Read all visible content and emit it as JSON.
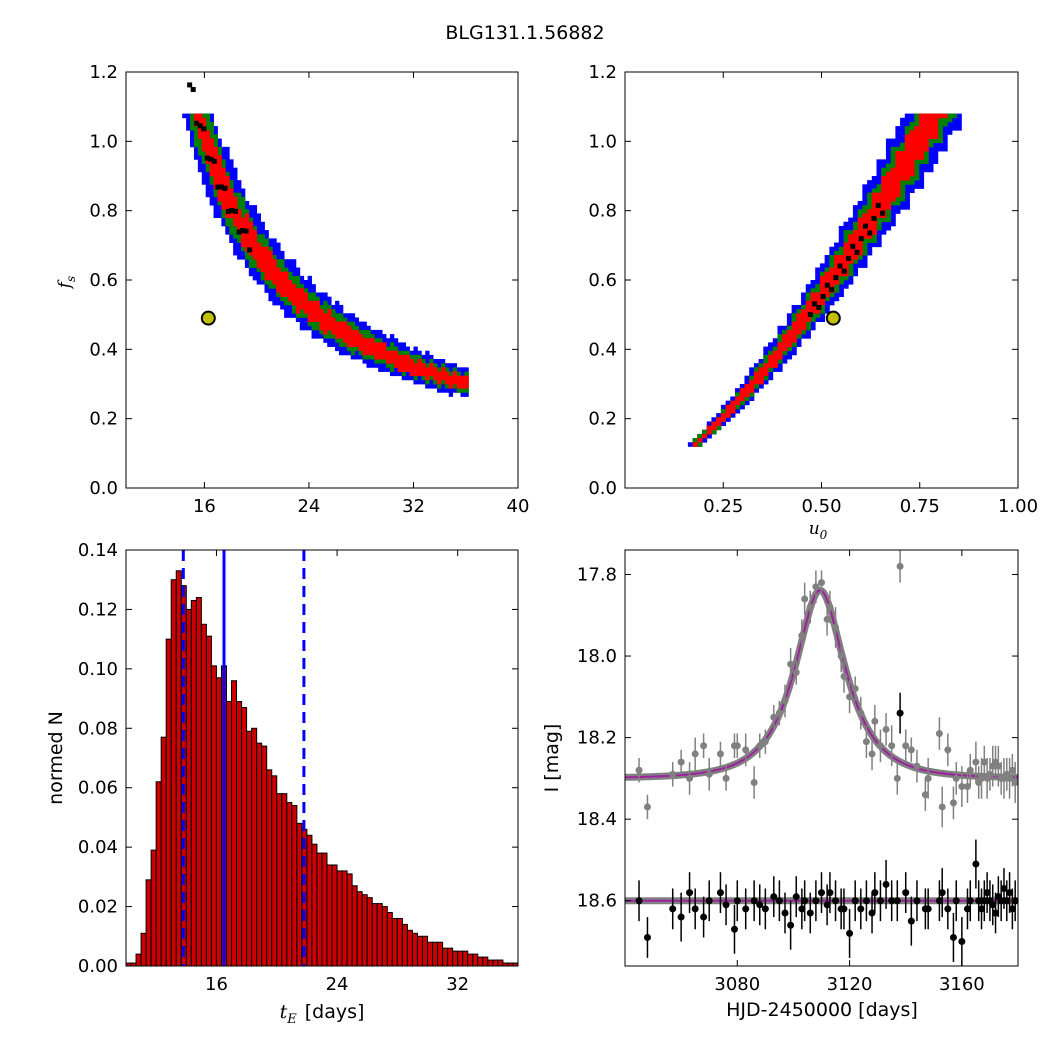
{
  "figure": {
    "title": "BLG131.1.56882"
  },
  "colors": {
    "sigma1": "#ff0000",
    "sigma2": "#008000",
    "sigma3": "#0000ff",
    "best": "#000000",
    "marker_fill": "#bfbf00",
    "hist_fill": "#cc0000",
    "vline": "#0000ff",
    "model_gray": "#808080",
    "model_purple": "#a020a0",
    "data_black": "#000000",
    "data_gray": "#808080"
  },
  "chart_data": [
    {
      "type": "heatmap",
      "xlabel": "",
      "ylabel": "f_s",
      "ylabel_main": "f",
      "ylabel_sub": "s",
      "xlim": [
        10,
        40
      ],
      "ylim": [
        0.0,
        1.2
      ],
      "xticks": [
        16,
        24,
        32,
        40
      ],
      "xtick_labels": [
        "16",
        "24",
        "32",
        "40"
      ],
      "yticks": [
        0.0,
        0.2,
        0.4,
        0.6,
        0.8,
        1.0,
        1.2
      ],
      "ytick_labels": [
        "0.0",
        "0.2",
        "0.4",
        "0.6",
        "0.8",
        "1.0",
        "1.2"
      ],
      "best_fit": {
        "x": 16.3,
        "y": 0.49
      },
      "confidence_region": "fs ~ 8.4 / (tE - 7.5)"
    },
    {
      "type": "heatmap",
      "xlabel": "u_0",
      "xlabel_main": "u",
      "xlabel_sub": "0",
      "ylabel": "",
      "xlim": [
        0.0,
        1.0
      ],
      "ylim": [
        0.0,
        1.2
      ],
      "xticks": [
        0.25,
        0.5,
        0.75,
        1.0
      ],
      "xtick_labels": [
        "0.25",
        "0.50",
        "0.75",
        "1.00"
      ],
      "yticks": [
        0.0,
        0.2,
        0.4,
        0.6,
        0.8,
        1.0,
        1.2
      ],
      "ytick_labels": [
        "0.0",
        "0.2",
        "0.4",
        "0.6",
        "0.8",
        "1.0",
        "1.2"
      ],
      "best_fit": {
        "x": 0.53,
        "y": 0.49
      },
      "confidence_region": "fs ~ 1.54 * u0^1.45"
    },
    {
      "type": "bar",
      "xlabel": "t_E  [days]",
      "xlabel_main": "t",
      "xlabel_sub": "E",
      "xlabel_rest": "[days]",
      "ylabel": "normed N",
      "xlim": [
        10,
        36
      ],
      "ylim": [
        0.0,
        0.14
      ],
      "xticks": [
        16,
        24,
        32
      ],
      "xtick_labels": [
        "16",
        "24",
        "32"
      ],
      "yticks": [
        0.0,
        0.02,
        0.04,
        0.06,
        0.08,
        0.1,
        0.12,
        0.14
      ],
      "ytick_labels": [
        "0.00",
        "0.02",
        "0.04",
        "0.06",
        "0.08",
        "0.10",
        "0.12",
        "0.14"
      ],
      "bin_start": 10.0,
      "bin_width": 0.3333,
      "values": [
        0.001,
        0.001,
        0.004,
        0.011,
        0.029,
        0.039,
        0.062,
        0.077,
        0.11,
        0.13,
        0.133,
        0.128,
        0.12,
        0.123,
        0.124,
        0.115,
        0.111,
        0.101,
        0.097,
        0.101,
        0.089,
        0.096,
        0.089,
        0.087,
        0.079,
        0.08,
        0.075,
        0.074,
        0.066,
        0.064,
        0.058,
        0.058,
        0.055,
        0.054,
        0.048,
        0.046,
        0.044,
        0.041,
        0.038,
        0.038,
        0.034,
        0.034,
        0.032,
        0.032,
        0.031,
        0.027,
        0.025,
        0.024,
        0.023,
        0.021,
        0.021,
        0.02,
        0.018,
        0.016,
        0.016,
        0.014,
        0.012,
        0.011,
        0.01,
        0.01,
        0.008,
        0.008,
        0.008,
        0.006,
        0.006,
        0.005,
        0.005,
        0.005,
        0.004,
        0.004,
        0.003,
        0.003,
        0.002,
        0.002,
        0.002,
        0.001,
        0.001,
        0.001
      ],
      "median": 16.5,
      "lower": 13.8,
      "upper": 21.8
    },
    {
      "type": "scatter",
      "xlabel": "HJD-2450000 [days]",
      "ylabel": "I [mag]",
      "xlim": [
        3040,
        3180
      ],
      "ylim": [
        18.76,
        17.74
      ],
      "xticks": [
        3080,
        3120,
        3160
      ],
      "xtick_labels": [
        "3080",
        "3120",
        "3160"
      ],
      "yticks": [
        17.8,
        18.0,
        18.2,
        18.4,
        18.6
      ],
      "ytick_labels": [
        "17.8",
        "18.0",
        "18.2",
        "18.4",
        "18.6"
      ],
      "model": {
        "t0": 3109.5,
        "tE": 16.3,
        "u0": 0.53,
        "fs": 0.49,
        "I_base": 18.3,
        "residual_offset": 18.6
      },
      "series": [
        {
          "name": "",
          "x": [
            3045,
            3048,
            3057,
            3060,
            3063,
            3065,
            3068,
            3070,
            3074,
            3076,
            3079,
            3080,
            3083,
            3086,
            3088,
            3090,
            3093,
            3095,
            3097,
            3099,
            3101,
            3103,
            3104,
            3106,
            3108,
            3110,
            3112,
            3113,
            3115,
            3117,
            3118,
            3120,
            3122,
            3124,
            3126,
            3128,
            3129,
            3131,
            3133,
            3135,
            3137,
            3138,
            3140,
            3142,
            3144,
            3147,
            3148,
            3152,
            3153,
            3155,
            3157,
            3158,
            3160,
            3162,
            3163,
            3165,
            3166,
            3167,
            3168,
            3169,
            3170,
            3171,
            3172,
            3173,
            3174,
            3175,
            3176,
            3177,
            3178,
            3179
          ],
          "y": [
            18.28,
            18.37,
            18.29,
            18.26,
            18.3,
            18.24,
            18.22,
            18.29,
            18.24,
            18.3,
            18.22,
            18.22,
            18.23,
            18.31,
            18.22,
            18.21,
            18.15,
            18.14,
            18.11,
            18.02,
            18.04,
            17.95,
            17.86,
            17.88,
            17.83,
            17.82,
            17.91,
            17.88,
            17.93,
            18.0,
            18.05,
            18.1,
            18.08,
            18.14,
            18.21,
            18.24,
            18.16,
            18.22,
            18.18,
            18.22,
            18.3,
            17.78,
            18.22,
            18.23,
            18.27,
            18.34,
            18.3,
            18.19,
            18.37,
            18.23,
            18.36,
            18.3,
            18.32,
            18.32,
            18.28,
            18.26,
            18.31,
            18.3,
            18.26,
            18.3,
            18.29,
            18.27,
            18.26,
            18.27,
            18.3,
            18.3,
            18.29,
            18.3,
            18.28,
            18.31
          ],
          "err": [
            0.03,
            0.03,
            0.03,
            0.03,
            0.04,
            0.04,
            0.03,
            0.04,
            0.03,
            0.03,
            0.03,
            0.03,
            0.04,
            0.04,
            0.03,
            0.03,
            0.03,
            0.03,
            0.04,
            0.04,
            0.03,
            0.04,
            0.04,
            0.04,
            0.04,
            0.03,
            0.04,
            0.04,
            0.05,
            0.04,
            0.04,
            0.04,
            0.03,
            0.04,
            0.04,
            0.04,
            0.04,
            0.04,
            0.04,
            0.05,
            0.04,
            0.04,
            0.04,
            0.03,
            0.04,
            0.04,
            0.05,
            0.04,
            0.05,
            0.04,
            0.04,
            0.04,
            0.05,
            0.04,
            0.04,
            0.05,
            0.04,
            0.05,
            0.04,
            0.05,
            0.04,
            0.05,
            0.04,
            0.05,
            0.04,
            0.05,
            0.04,
            0.05,
            0.04,
            0.05
          ]
        },
        {
          "name": "",
          "x": [
            3045,
            3048,
            3057,
            3060,
            3063,
            3065,
            3068,
            3070,
            3074,
            3076,
            3079,
            3080,
            3083,
            3086,
            3088,
            3090,
            3093,
            3095,
            3097,
            3099,
            3101,
            3103,
            3104,
            3106,
            3108,
            3110,
            3112,
            3113,
            3115,
            3117,
            3118,
            3120,
            3122,
            3124,
            3126,
            3128,
            3129,
            3131,
            3133,
            3135,
            3137,
            3138,
            3140,
            3142,
            3144,
            3147,
            3148,
            3152,
            3153,
            3155,
            3157,
            3158,
            3160,
            3162,
            3163,
            3165,
            3166,
            3167,
            3168,
            3169,
            3170,
            3171,
            3172,
            3173,
            3174,
            3175,
            3176,
            3177,
            3178,
            3179
          ],
          "y": [
            18.6,
            18.69,
            18.62,
            18.64,
            18.58,
            18.62,
            18.64,
            18.6,
            18.58,
            18.61,
            18.67,
            18.6,
            18.62,
            18.6,
            18.61,
            18.62,
            18.59,
            18.6,
            18.63,
            18.66,
            18.59,
            18.62,
            18.6,
            18.63,
            18.6,
            18.58,
            18.61,
            18.58,
            18.6,
            18.62,
            18.62,
            18.68,
            18.6,
            18.62,
            18.6,
            18.63,
            18.58,
            18.6,
            18.56,
            18.6,
            18.6,
            18.14,
            18.58,
            18.65,
            18.6,
            18.62,
            18.62,
            18.6,
            18.58,
            18.62,
            18.69,
            18.6,
            18.7,
            18.62,
            18.6,
            18.51,
            18.6,
            18.62,
            18.6,
            18.58,
            18.6,
            18.61,
            18.63,
            18.59,
            18.6,
            18.57,
            18.6,
            18.58,
            18.62,
            18.6
          ],
          "err": [
            0.05,
            0.05,
            0.05,
            0.06,
            0.05,
            0.05,
            0.05,
            0.05,
            0.05,
            0.05,
            0.06,
            0.05,
            0.05,
            0.05,
            0.05,
            0.05,
            0.05,
            0.05,
            0.05,
            0.06,
            0.05,
            0.05,
            0.05,
            0.05,
            0.05,
            0.05,
            0.05,
            0.05,
            0.05,
            0.05,
            0.05,
            0.06,
            0.05,
            0.05,
            0.05,
            0.05,
            0.05,
            0.05,
            0.06,
            0.05,
            0.05,
            0.05,
            0.05,
            0.06,
            0.05,
            0.05,
            0.05,
            0.05,
            0.06,
            0.05,
            0.06,
            0.05,
            0.06,
            0.05,
            0.05,
            0.06,
            0.05,
            0.05,
            0.05,
            0.05,
            0.05,
            0.05,
            0.05,
            0.05,
            0.05,
            0.05,
            0.05,
            0.05,
            0.05,
            0.05
          ]
        }
      ]
    }
  ]
}
